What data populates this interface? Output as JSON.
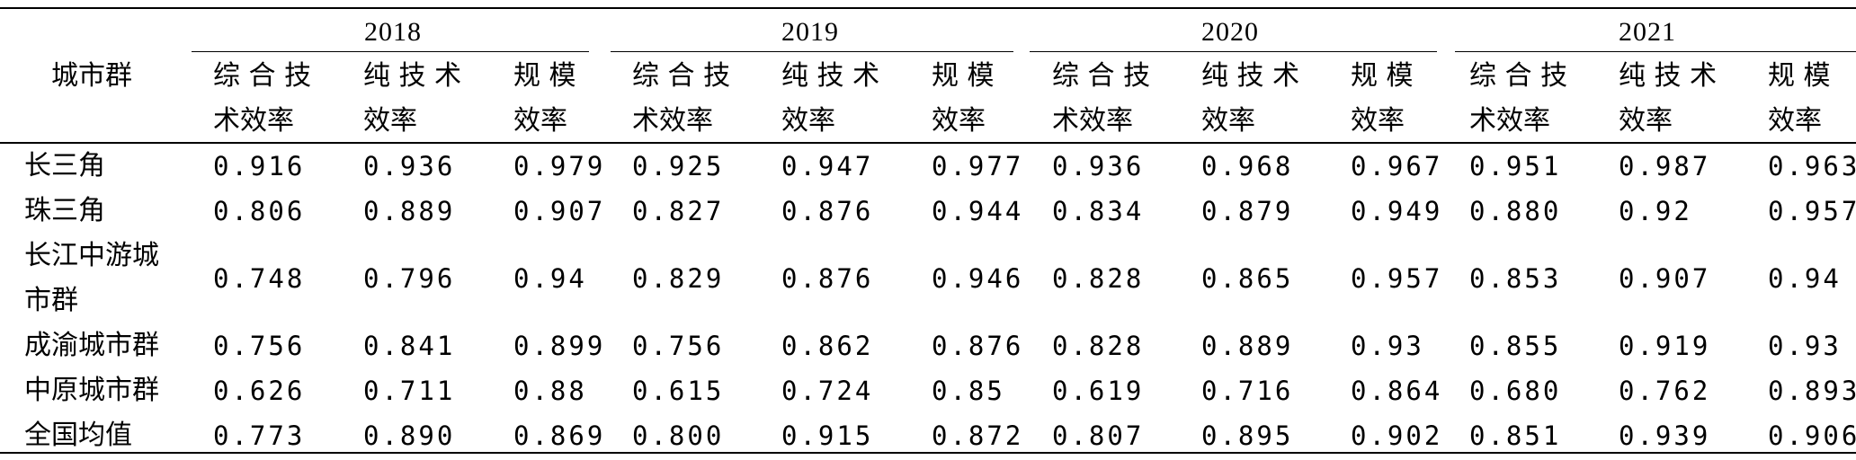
{
  "table": {
    "row_header": "城市群",
    "years": [
      "2018",
      "2019",
      "2020",
      "2021"
    ],
    "metric_headers": [
      {
        "line1": "综 合 技",
        "line2": "术效率"
      },
      {
        "line1": "纯 技 术",
        "line2": "效率"
      },
      {
        "line1": "规 模",
        "line2": "效率"
      }
    ],
    "rows": [
      {
        "name_lines": [
          "长三角"
        ],
        "values": [
          "0.916",
          "0.936",
          "0.979",
          "0.925",
          "0.947",
          "0.977",
          "0.936",
          "0.968",
          "0.967",
          "0.951",
          "0.987",
          "0.963"
        ]
      },
      {
        "name_lines": [
          "珠三角"
        ],
        "values": [
          "0.806",
          "0.889",
          "0.907",
          "0.827",
          "0.876",
          "0.944",
          "0.834",
          "0.879",
          "0.949",
          "0.880",
          "0.92",
          "0.957"
        ]
      },
      {
        "name_lines": [
          "长江中游城",
          "市群"
        ],
        "values": [
          "0.748",
          "0.796",
          "0.94",
          "0.829",
          "0.876",
          "0.946",
          "0.828",
          "0.865",
          "0.957",
          "0.853",
          "0.907",
          "0.94"
        ]
      },
      {
        "name_lines": [
          "成渝城市群"
        ],
        "values": [
          "0.756",
          "0.841",
          "0.899",
          "0.756",
          "0.862",
          "0.876",
          "0.828",
          "0.889",
          "0.93",
          "0.855",
          "0.919",
          "0.93"
        ]
      },
      {
        "name_lines": [
          "中原城市群"
        ],
        "values": [
          "0.626",
          "0.711",
          "0.88",
          "0.615",
          "0.724",
          "0.85",
          "0.619",
          "0.716",
          "0.864",
          "0.680",
          "0.762",
          "0.893"
        ]
      },
      {
        "name_lines": [
          "全国均值"
        ],
        "values": [
          "0.773",
          "0.890",
          "0.869",
          "0.800",
          "0.915",
          "0.872",
          "0.807",
          "0.895",
          "0.902",
          "0.851",
          "0.939",
          "0.906"
        ]
      }
    ]
  }
}
